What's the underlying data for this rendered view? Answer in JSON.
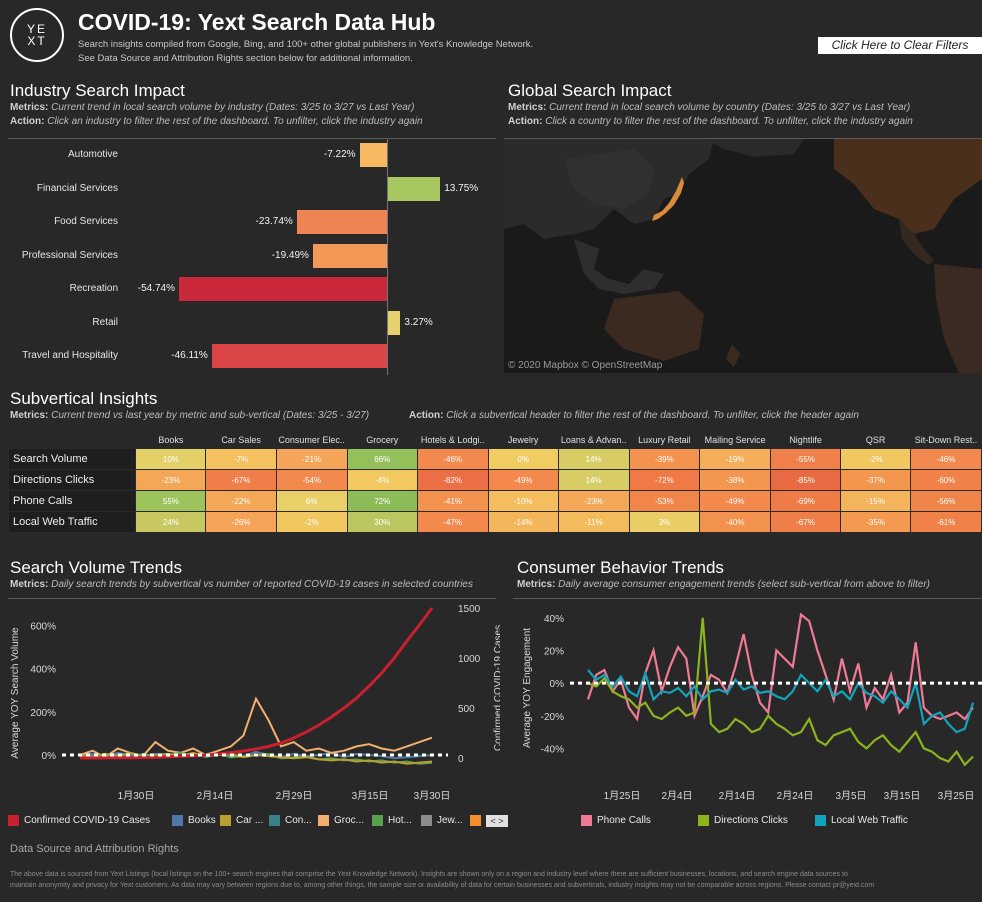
{
  "header": {
    "logo_text": "YEXT",
    "title": "COVID-19: Yext Search Data Hub",
    "subtitle_line1": "Search insights compiled from Google, Bing, and 100+ other global publishers in Yext's Knowledge Network.",
    "subtitle_line2": "See Data Source and Attribution Rights section below for additional information.",
    "clear_filters": "Click Here to Clear Filters"
  },
  "industry": {
    "title": "Industry Search Impact",
    "metrics_label": "Metrics:",
    "metrics_text": "Current trend in local search volume by industry (Dates: 3/25 to 3/27 vs Last Year)",
    "action_label": "Action:",
    "action_text": "Click an industry to filter the rest of the dashboard. To unfilter, click the industry again",
    "rows": [
      {
        "label": "Automotive",
        "value_text": "-7.22%",
        "value": -7.22,
        "color": "#f6b860"
      },
      {
        "label": "Financial Services",
        "value_text": "13.75%",
        "value": 13.75,
        "color": "#a7c760"
      },
      {
        "label": "Food Services",
        "value_text": "-23.74%",
        "value": -23.74,
        "color": "#ee8454"
      },
      {
        "label": "Professional Services",
        "value_text": "-19.49%",
        "value": -19.49,
        "color": "#f29857"
      },
      {
        "label": "Recreation",
        "value_text": "-54.74%",
        "value": -54.74,
        "color": "#c8283a"
      },
      {
        "label": "Retail",
        "value_text": "3.27%",
        "value": 3.27,
        "color": "#e6d070"
      },
      {
        "label": "Travel and Hospitality",
        "value_text": "-46.11%",
        "value": -46.11,
        "color": "#dc4545"
      }
    ]
  },
  "global": {
    "title": "Global Search Impact",
    "metrics_label": "Metrics:",
    "metrics_text": "Current trend in local search volume by country (Dates: 3/25 to 3/27 vs Last Year)",
    "action_label": "Action:",
    "action_text": "Click a country to filter the rest of the dashboard. To unfilter, click the industry again",
    "attribution": "© 2020 Mapbox © OpenStreetMap"
  },
  "subvertical": {
    "title": "Subvertical Insights",
    "metrics_label": "Metrics:",
    "metrics_text": "Current trend vs last year by metric and sub-vertical (Dates: 3/25 - 3/27)",
    "action_label": "Action:",
    "action_text": "Click a subvertical header to filter the rest of the dashboard. To unfilter, click the header again",
    "columns": [
      "Books",
      "Car Sales",
      "Consumer Elec..",
      "Grocery",
      "Hotels & Lodgi..",
      "Jewelry",
      "Loans & Advan..",
      "Luxury Retail",
      "Mailing Service",
      "Nightlife",
      "QSR",
      "Sit-Down Rest.."
    ],
    "rows": [
      {
        "label": "Search Volume",
        "cells": [
          {
            "t": "10%",
            "c": "#e3d066"
          },
          {
            "t": "-7%",
            "c": "#f4c15e"
          },
          {
            "t": "-21%",
            "c": "#f5a55a"
          },
          {
            "t": "66%",
            "c": "#93c05a"
          },
          {
            "t": "-46%",
            "c": "#f3894e"
          },
          {
            "t": "0%",
            "c": "#f1cc63"
          },
          {
            "t": "14%",
            "c": "#d8cd65"
          },
          {
            "t": "-39%",
            "c": "#f3934f"
          },
          {
            "t": "-19%",
            "c": "#f4ae5a"
          },
          {
            "t": "-55%",
            "c": "#f08049"
          },
          {
            "t": "-2%",
            "c": "#f1c760"
          },
          {
            "t": "-46%",
            "c": "#f3894e"
          }
        ]
      },
      {
        "label": "Directions Clicks",
        "cells": [
          {
            "t": "-23%",
            "c": "#f5a758"
          },
          {
            "t": "-67%",
            "c": "#f07e48"
          },
          {
            "t": "-54%",
            "c": "#f18a4c"
          },
          {
            "t": "-4%",
            "c": "#f1c960"
          },
          {
            "t": "-82%",
            "c": "#ea6f44"
          },
          {
            "t": "-49%",
            "c": "#f3894d"
          },
          {
            "t": "14%",
            "c": "#d8cd65"
          },
          {
            "t": "-72%",
            "c": "#ef7a46"
          },
          {
            "t": "-38%",
            "c": "#f3964f"
          },
          {
            "t": "-85%",
            "c": "#e86a42"
          },
          {
            "t": "-37%",
            "c": "#f3974f"
          },
          {
            "t": "-60%",
            "c": "#f08249"
          }
        ]
      },
      {
        "label": "Phone Calls",
        "cells": [
          {
            "t": "55%",
            "c": "#9cc35c"
          },
          {
            "t": "-22%",
            "c": "#f5a758"
          },
          {
            "t": "6%",
            "c": "#e8cf68"
          },
          {
            "t": "72%",
            "c": "#8bbc58"
          },
          {
            "t": "-41%",
            "c": "#f3914e"
          },
          {
            "t": "-10%",
            "c": "#f4bd5d"
          },
          {
            "t": "-23%",
            "c": "#f5a758"
          },
          {
            "t": "-53%",
            "c": "#f1864b"
          },
          {
            "t": "-49%",
            "c": "#f3894d"
          },
          {
            "t": "-69%",
            "c": "#ef7c47"
          },
          {
            "t": "-15%",
            "c": "#f4b45b"
          },
          {
            "t": "-56%",
            "c": "#f0854a"
          }
        ]
      },
      {
        "label": "Local Web Traffic",
        "cells": [
          {
            "t": "24%",
            "c": "#c7c862"
          },
          {
            "t": "-26%",
            "c": "#f5a457"
          },
          {
            "t": "-2%",
            "c": "#f1c760"
          },
          {
            "t": "30%",
            "c": "#bcc661"
          },
          {
            "t": "-47%",
            "c": "#f3894d"
          },
          {
            "t": "-14%",
            "c": "#f4b65b"
          },
          {
            "t": "-11%",
            "c": "#f4bb5c"
          },
          {
            "t": "3%",
            "c": "#ebcd66"
          },
          {
            "t": "-40%",
            "c": "#f3924e"
          },
          {
            "t": "-67%",
            "c": "#f07e48"
          },
          {
            "t": "-35%",
            "c": "#f49a50"
          },
          {
            "t": "-61%",
            "c": "#f08249"
          }
        ]
      }
    ]
  },
  "search_trends": {
    "title": "Search Volume Trends",
    "metrics_label": "Metrics:",
    "metrics_text": "Daily search trends by subvertical vs number of reported COVID-19 cases in selected countries",
    "legend": [
      {
        "label": "Confirmed COVID-19 Cases",
        "color": "#c8202e"
      },
      {
        "label": "Books",
        "color": "#4e79a7"
      },
      {
        "label": "Car ...",
        "color": "#b8a030"
      },
      {
        "label": "Con...",
        "color": "#3a7f8a"
      },
      {
        "label": "Groc...",
        "color": "#f2b070"
      },
      {
        "label": "Hot...",
        "color": "#59a14f"
      },
      {
        "label": "Jew...",
        "color": "#8c8c8c"
      },
      {
        "label": "",
        "color": "#f28e2b"
      }
    ]
  },
  "consumer_trends": {
    "title": "Consumer Behavior Trends",
    "metrics_label": "Metrics:",
    "metrics_text": "Daily average consumer engagement trends (select sub-vertical from above to filter)",
    "legend": [
      {
        "label": "Phone Calls",
        "color": "#f07a95"
      },
      {
        "label": "Directions Clicks",
        "color": "#8cb41c"
      },
      {
        "label": "Local Web Traffic",
        "color": "#12a3bd"
      }
    ]
  },
  "chart_data": [
    {
      "type": "line",
      "title": "Search Volume Trends",
      "ylabel": "Average YOY Search Volume",
      "y2label": "Confirmed COVID-19 Cases",
      "x_ticks": [
        "1月30日",
        "2月14日",
        "2月29日",
        "3月15日",
        "3月30日"
      ],
      "yticks": [
        "600%",
        "400%",
        "200%",
        "0%"
      ],
      "y2ticks": [
        "1500",
        "1000",
        "500",
        "0"
      ],
      "ylim": [
        -60,
        680
      ],
      "y2lim": [
        -100,
        1500
      ],
      "series": [
        {
          "name": "Confirmed COVID-19 Cases",
          "axis": "right",
          "color": "#c8202e",
          "values": [
            0,
            0,
            1,
            2,
            3,
            5,
            8,
            12,
            16,
            22,
            30,
            40,
            55,
            70,
            90,
            115,
            150,
            200,
            260,
            330,
            410,
            500,
            600,
            720,
            850,
            1000,
            1170,
            1330,
            1500
          ]
        },
        {
          "name": "Books",
          "axis": "left",
          "color": "#4e79a7",
          "values": [
            0,
            5,
            -5,
            10,
            0,
            -10,
            5,
            0,
            -5,
            10,
            -10,
            5,
            0,
            -5,
            15,
            0,
            -10,
            5,
            -5,
            0,
            10,
            -10,
            5,
            0,
            -5,
            -15,
            -10,
            -5,
            0
          ]
        },
        {
          "name": "Groc...",
          "axis": "left",
          "color": "#f2b070",
          "values": [
            0,
            20,
            -10,
            30,
            10,
            -5,
            60,
            20,
            10,
            30,
            0,
            20,
            40,
            90,
            260,
            160,
            40,
            60,
            20,
            30,
            10,
            20,
            40,
            50,
            30,
            20,
            40,
            60,
            80
          ]
        },
        {
          "name": "Hot...",
          "axis": "left",
          "color": "#59a14f",
          "values": [
            0,
            -5,
            5,
            0,
            -10,
            5,
            -5,
            0,
            10,
            -5,
            0,
            5,
            -10,
            -5,
            0,
            5,
            -15,
            -10,
            -5,
            -20,
            -15,
            -25,
            -20,
            -30,
            -25,
            -35,
            -30,
            -40,
            -35
          ]
        },
        {
          "name": "Car ...",
          "axis": "left",
          "color": "#b8a030",
          "values": [
            0,
            -10,
            5,
            -5,
            10,
            -10,
            0,
            5,
            -5,
            10,
            -5,
            0,
            5,
            -10,
            0,
            -5,
            -10,
            -15,
            -10,
            -20,
            -25,
            -20,
            -30,
            -25,
            -35,
            -30,
            -40,
            -35,
            -30
          ]
        }
      ]
    },
    {
      "type": "line",
      "title": "Consumer Behavior Trends",
      "ylabel": "Average YOY Engagement",
      "x_ticks": [
        "1月25日",
        "2月4日",
        "2月14日",
        "2月24日",
        "3月5日",
        "3月15日",
        "3月25日"
      ],
      "yticks": [
        "40%",
        "20%",
        "0%",
        "-20%",
        "-40%"
      ],
      "ylim": [
        -52,
        46
      ],
      "series": [
        {
          "name": "Phone Calls",
          "color": "#f07a95",
          "values": [
            -10,
            5,
            8,
            -5,
            2,
            -15,
            -22,
            6,
            20,
            -5,
            10,
            22,
            15,
            -20,
            -8,
            5,
            2,
            -6,
            10,
            30,
            5,
            -12,
            -18,
            20,
            15,
            10,
            42,
            38,
            20,
            5,
            -10,
            15,
            -5,
            12,
            -15,
            -3,
            -10,
            5,
            -18,
            -12,
            25,
            -15,
            -20,
            -22,
            -20,
            -18,
            -22,
            -15
          ]
        },
        {
          "name": "Directions Clicks",
          "color": "#8cb41c",
          "values": [
            0,
            -2,
            3,
            -5,
            -8,
            -10,
            -15,
            -12,
            -20,
            -22,
            -18,
            -15,
            -20,
            -18,
            40,
            -25,
            -30,
            -28,
            -22,
            -25,
            -30,
            -28,
            -20,
            -25,
            -28,
            -32,
            -30,
            -22,
            -35,
            -38,
            -32,
            -30,
            -28,
            -36,
            -40,
            -35,
            -32,
            -38,
            -42,
            -36,
            -30,
            -40,
            -42,
            -46,
            -48,
            -42,
            -50,
            -45
          ]
        },
        {
          "name": "Local Web Traffic",
          "color": "#12a3bd",
          "values": [
            8,
            2,
            5,
            -2,
            4,
            -5,
            -8,
            6,
            -10,
            -5,
            -6,
            -3,
            -8,
            -2,
            -10,
            -5,
            -4,
            -6,
            2,
            -4,
            -2,
            -6,
            -5,
            -8,
            -10,
            -5,
            5,
            0,
            -5,
            2,
            -8,
            -5,
            -10,
            0,
            -6,
            -8,
            -12,
            -5,
            -10,
            -15,
            0,
            -25,
            -20,
            -18,
            -25,
            -30,
            -28,
            -12
          ]
        }
      ]
    }
  ],
  "footer": {
    "title": "Data Source and Attribution Rights",
    "line1": "The above data is sourced from Yext Listings (local listings on the 100+ search engines that comprise the Yext Knowledge Network). Insights are shown only on a region and industry level where there are sufficient businesses, locations, and search engine data sources to",
    "line2": "maintain anonymity and privacy for Yext customers.  As data may vary between regions due to, among other things, the sample size or availability of data for certain businesses and subverticals, industry insights may not be comparable across regions. Please contact pr@yext.com"
  }
}
